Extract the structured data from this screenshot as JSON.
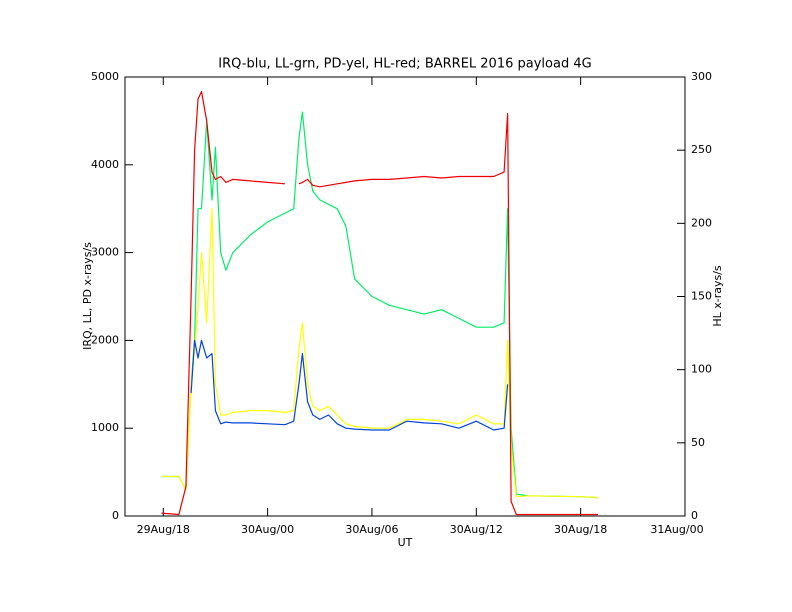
{
  "chart_data": {
    "type": "line",
    "title": "IRQ-blu, LL-grn, PD-yel, HL-red; BARREL 2016 payload 4G",
    "xlabel": "UT",
    "ylabel": "IRQ, LL, PD x-rays/s",
    "y2label": "HL x-rays/s",
    "x": [
      -0.1,
      0.9,
      1.3,
      1.6,
      1.8,
      2.0,
      2.2,
      2.5,
      2.8,
      3.0,
      3.3,
      3.6,
      4.0,
      5.0,
      6.0,
      7.0,
      7.5,
      7.8,
      8.0,
      8.3,
      8.6,
      9.0,
      9.5,
      10.0,
      10.5,
      11.0,
      12.0,
      13.0,
      14.0,
      15.0,
      16.0,
      17.0,
      18.0,
      19.0,
      19.6,
      19.8,
      20.0,
      20.3,
      21.0,
      24.0,
      25.0
    ],
    "xlim": [
      -2.2,
      30
    ],
    "xticks": [
      {
        "value": 0,
        "label": "29Aug/18"
      },
      {
        "value": 6,
        "label": "30Aug/00"
      },
      {
        "value": 12,
        "label": "30Aug/06"
      },
      {
        "value": 18,
        "label": "30Aug/12"
      },
      {
        "value": 24,
        "label": "30Aug/18"
      },
      {
        "value": 30,
        "label": "31Aug/00"
      }
    ],
    "ylim": [
      0,
      5000
    ],
    "yticks": [
      0,
      1000,
      2000,
      3000,
      4000,
      5000
    ],
    "y2lim": [
      0,
      300
    ],
    "y2ticks": [
      0,
      50,
      100,
      150,
      200,
      250,
      300
    ],
    "series": [
      {
        "color": "#00ee66",
        "values": [
          450,
          450,
          300,
          1500,
          2000,
          3500,
          3500,
          4500,
          3600,
          4200,
          3000,
          2800,
          3000,
          3200,
          3350,
          3450,
          3500,
          4300,
          4600,
          4000,
          3700,
          3600,
          3550,
          3500,
          3300,
          2700,
          2500,
          2400,
          2350,
          2300,
          2350,
          2250,
          2150,
          2150,
          2200,
          3500,
          1000,
          250,
          230,
          220,
          210
        ]
      },
      {
        "color": "#ffff00",
        "values": [
          450,
          450,
          300,
          1500,
          1900,
          2400,
          3000,
          2200,
          3500,
          1500,
          1150,
          1150,
          1180,
          1200,
          1200,
          1180,
          1200,
          1900,
          2200,
          1500,
          1250,
          1200,
          1250,
          1150,
          1050,
          1020,
          1000,
          1000,
          1100,
          1100,
          1080,
          1050,
          1150,
          1050,
          1050,
          2000,
          800,
          220,
          230,
          220,
          210
        ]
      },
      {
        "color": "#0044dd",
        "values": [
          null,
          null,
          null,
          1400,
          2000,
          1800,
          2000,
          1800,
          1850,
          1200,
          1050,
          1070,
          1060,
          1060,
          1050,
          1040,
          1080,
          1500,
          1850,
          1300,
          1150,
          1100,
          1150,
          1050,
          1000,
          990,
          980,
          980,
          1080,
          1060,
          1050,
          1000,
          1080,
          980,
          1000,
          1500,
          null,
          null,
          null,
          null,
          null
        ]
      },
      {
        "color": "#ee0000",
        "axis": "y2",
        "values": [
          2,
          1,
          20,
          150,
          250,
          285,
          290,
          270,
          235,
          230,
          232,
          228,
          230,
          229,
          228,
          227,
          null,
          227,
          228,
          230,
          226,
          225,
          226,
          227,
          228,
          229,
          230,
          230,
          231,
          232,
          231,
          232,
          232,
          232,
          235,
          275,
          10,
          1,
          1,
          1,
          1
        ]
      }
    ]
  }
}
